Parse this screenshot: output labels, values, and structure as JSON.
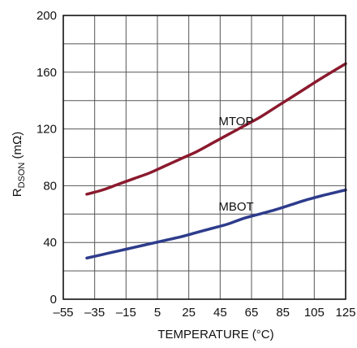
{
  "chart_data": {
    "type": "line",
    "title": "",
    "xlabel": "TEMPERATURE (°C)",
    "ylabel_main": "R",
    "ylabel_sub": "DSON",
    "ylabel_unit": " (mΩ)",
    "xlim": [
      -55,
      125
    ],
    "ylim": [
      0,
      200
    ],
    "grid": true,
    "x_ticks": [
      -55,
      -35,
      -15,
      5,
      25,
      45,
      65,
      85,
      105,
      125
    ],
    "x_tick_labels": [
      "–55",
      "–35",
      "–15",
      "5",
      "25",
      "45",
      "65",
      "85",
      "105",
      "125"
    ],
    "y_ticks": [
      0,
      40,
      80,
      120,
      160,
      200
    ],
    "y_tick_labels": [
      "0",
      "40",
      "80",
      "120",
      "160",
      "200"
    ],
    "series": [
      {
        "name": "MTOP",
        "color": "#8b1a2e",
        "x": [
          -40,
          -30,
          -20,
          -10,
          0,
          10,
          20,
          30,
          40,
          50,
          60,
          70,
          80,
          90,
          100,
          110,
          125
        ],
        "values": [
          74,
          77,
          81,
          85,
          89,
          94,
          99,
          104,
          110,
          116,
          122,
          128,
          135,
          142,
          149,
          156,
          166
        ]
      },
      {
        "name": "MBOT",
        "color": "#2e3c8c",
        "x": [
          -40,
          -30,
          -20,
          -10,
          0,
          10,
          20,
          30,
          40,
          50,
          60,
          70,
          80,
          90,
          100,
          110,
          125
        ],
        "values": [
          29,
          31.5,
          34,
          36.5,
          39,
          41.5,
          44,
          47,
          50,
          53,
          57,
          60,
          63,
          66.5,
          70,
          73,
          77
        ]
      }
    ]
  }
}
